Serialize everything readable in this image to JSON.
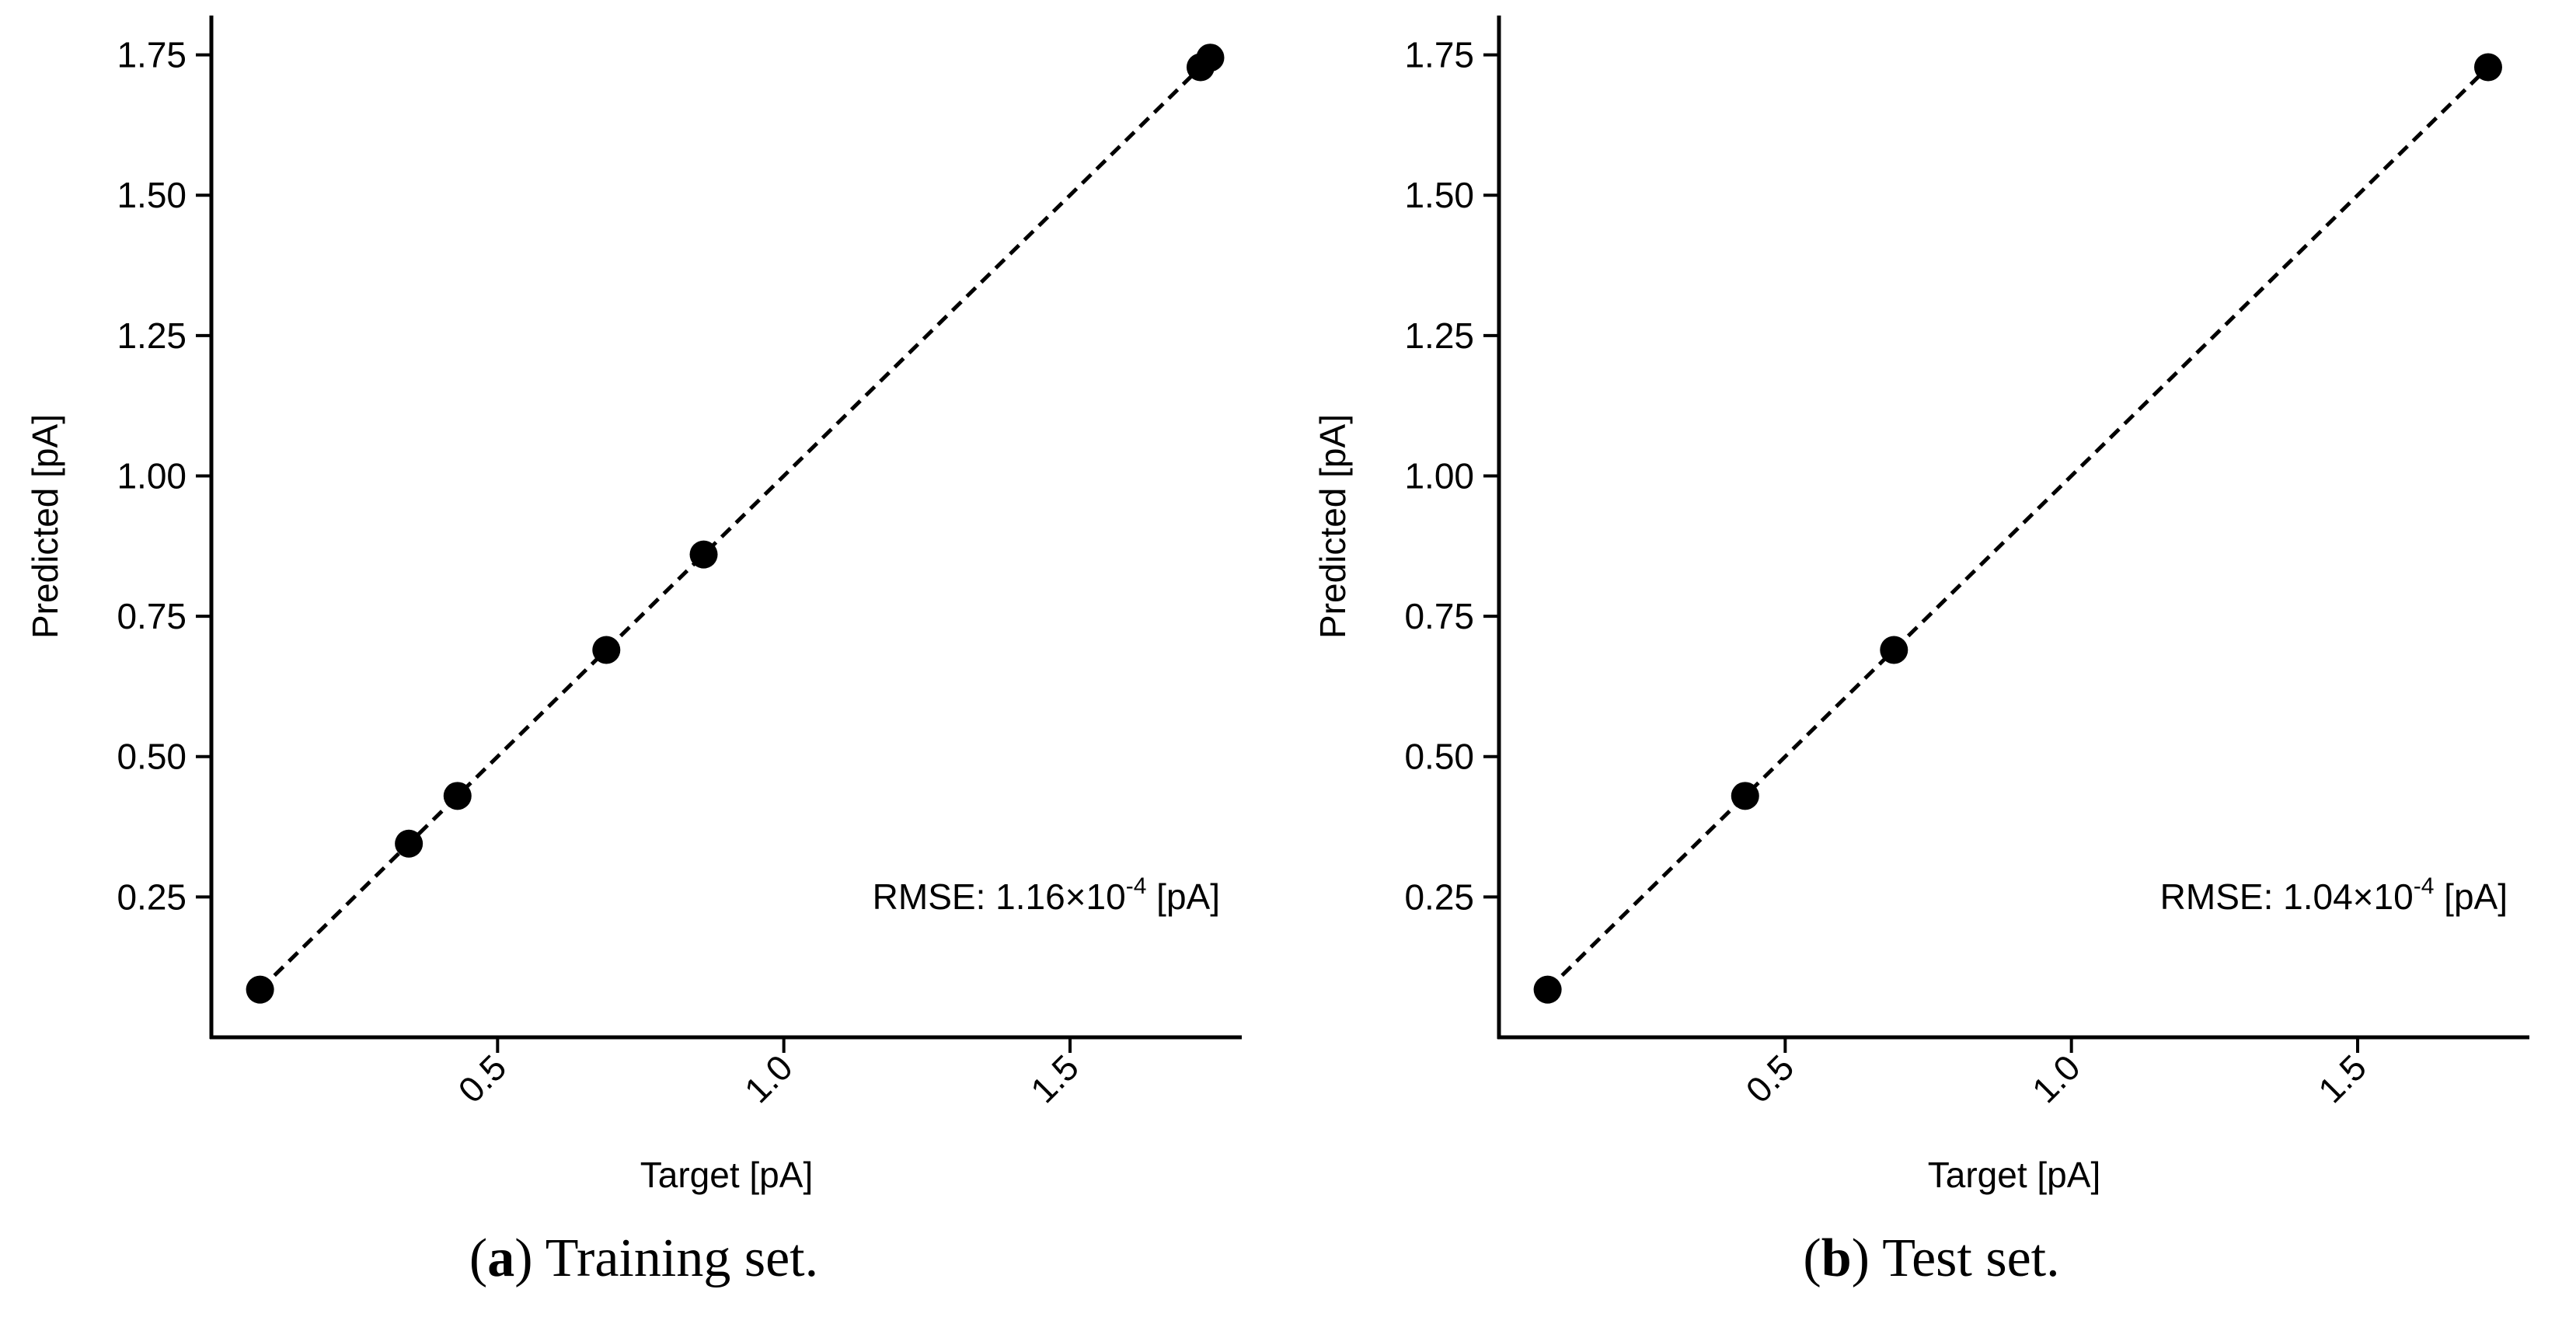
{
  "chart_data": [
    {
      "type": "scatter",
      "panel_letter": "a",
      "caption_text": "Training set.",
      "xlabel": "Target [pA]",
      "ylabel": "Predicted [pA]",
      "xlim": [
        0.0,
        1.8
      ],
      "ylim": [
        0.0,
        1.82
      ],
      "x_ticks": [
        "0.5",
        "1.0",
        "1.5"
      ],
      "x_tick_values": [
        0.5,
        1.0,
        1.5
      ],
      "y_ticks": [
        "0.25",
        "0.50",
        "0.75",
        "1.00",
        "1.25",
        "1.50",
        "1.75"
      ],
      "y_tick_values": [
        0.25,
        0.5,
        0.75,
        1.0,
        1.25,
        1.5,
        1.75
      ],
      "rmse_prefix": "RMSE: 1.16×10",
      "rmse_exp": "-4",
      "rmse_suffix": " [pA]",
      "fit_line": {
        "x": [
          0.085,
          1.745
        ],
        "y": [
          0.085,
          1.745
        ]
      },
      "points": {
        "x": [
          0.085,
          0.345,
          0.43,
          0.69,
          0.86,
          1.728,
          1.745
        ],
        "y": [
          0.085,
          0.345,
          0.43,
          0.69,
          0.86,
          1.728,
          1.745
        ]
      }
    },
    {
      "type": "scatter",
      "panel_letter": "b",
      "caption_text": "Test set.",
      "xlabel": "Target [pA]",
      "ylabel": "Predicted [pA]",
      "xlim": [
        0.0,
        1.8
      ],
      "ylim": [
        0.0,
        1.82
      ],
      "x_ticks": [
        "0.5",
        "1.0",
        "1.5"
      ],
      "x_tick_values": [
        0.5,
        1.0,
        1.5
      ],
      "y_ticks": [
        "0.25",
        "0.50",
        "0.75",
        "1.00",
        "1.25",
        "1.50",
        "1.75"
      ],
      "y_tick_values": [
        0.25,
        0.5,
        0.75,
        1.0,
        1.25,
        1.5,
        1.75
      ],
      "rmse_prefix": "RMSE: 1.04×10",
      "rmse_exp": "-4",
      "rmse_suffix": " [pA]",
      "fit_line": {
        "x": [
          0.085,
          1.728
        ],
        "y": [
          0.085,
          1.728
        ]
      },
      "points": {
        "x": [
          0.085,
          0.43,
          0.69,
          1.728
        ],
        "y": [
          0.085,
          0.43,
          0.69,
          1.728
        ]
      }
    }
  ]
}
